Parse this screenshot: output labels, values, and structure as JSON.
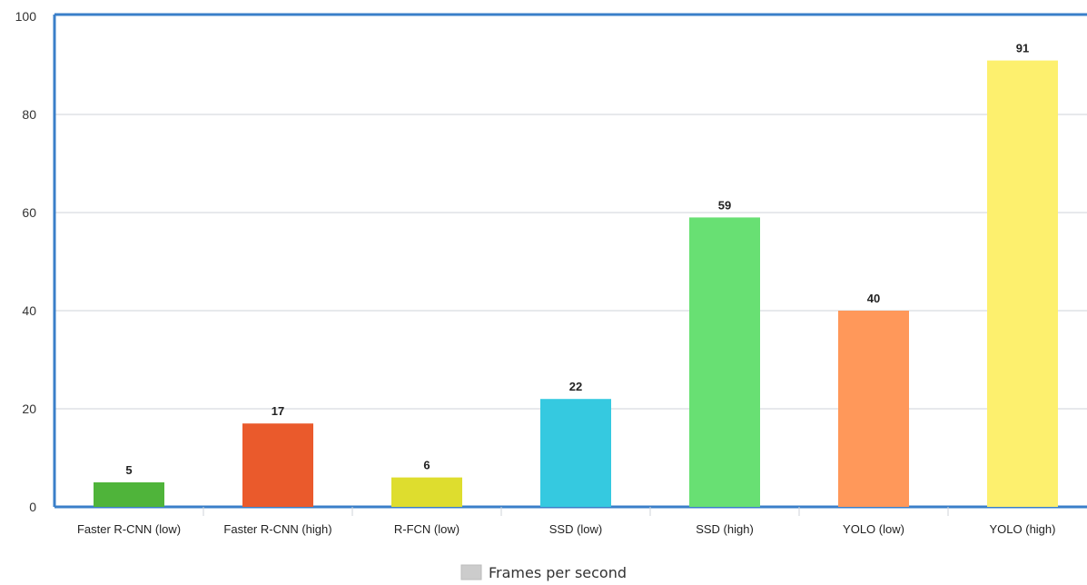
{
  "chart_data": {
    "type": "bar",
    "categories": [
      "Faster R-CNN (low)",
      "Faster R-CNN (high)",
      "R-FCN (low)",
      "SSD (low)",
      "SSD (high)",
      "YOLO (low)",
      "YOLO (high)"
    ],
    "series": [
      {
        "name": "Frames per second",
        "values": [
          5,
          17,
          6,
          22,
          59,
          40,
          91
        ]
      }
    ],
    "bar_colors": [
      "#4fb43a",
      "#ea5a2c",
      "#dedd2e",
      "#35c9e0",
      "#68e073",
      "#ff985a",
      "#fdf06e"
    ],
    "ylim": [
      0,
      100
    ],
    "yticks": [
      "0",
      "20",
      "40",
      "60",
      "80",
      "100"
    ],
    "grid": true,
    "legend_position": "bottom-center",
    "legend_swatch_color": "#cccccc",
    "frame_color": "#3a7fc9",
    "data_labels": [
      "5",
      "17",
      "6",
      "22",
      "59",
      "40",
      "91"
    ]
  }
}
